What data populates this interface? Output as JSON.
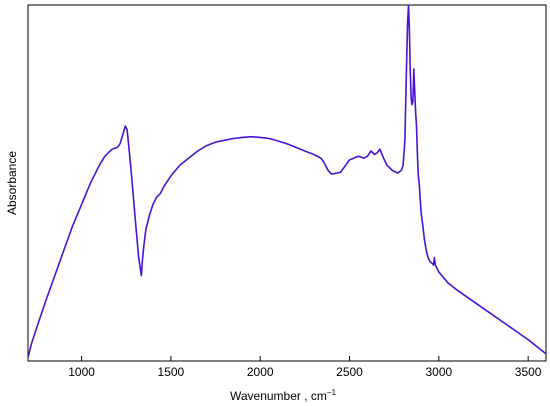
{
  "chart_data": {
    "type": "line",
    "title": "",
    "xlabel": "Wavenumber , cm",
    "xlabel_superscript": "−1",
    "ylabel": "Absorbance",
    "xlim": [
      700,
      3600
    ],
    "ylim": [
      0,
      1
    ],
    "x_ticks": [
      "1000",
      "1500",
      "2000",
      "2500",
      "3000",
      "3500"
    ],
    "y_ticks_labeled": false,
    "grid": false,
    "legend": "none",
    "series": [
      {
        "color": "#4a12d6",
        "x": [
          700,
          720,
          760,
          800,
          850,
          900,
          950,
          1000,
          1050,
          1100,
          1130,
          1150,
          1170,
          1200,
          1215,
          1230,
          1245,
          1255,
          1265,
          1280,
          1300,
          1320,
          1335,
          1340,
          1350,
          1360,
          1380,
          1400,
          1420,
          1440,
          1460,
          1500,
          1550,
          1600,
          1650,
          1700,
          1750,
          1800,
          1850,
          1900,
          1950,
          2000,
          2050,
          2100,
          2150,
          2200,
          2250,
          2300,
          2340,
          2355,
          2365,
          2380,
          2400,
          2450,
          2500,
          2550,
          2580,
          2600,
          2620,
          2640,
          2655,
          2670,
          2690,
          2710,
          2740,
          2770,
          2790,
          2800,
          2810,
          2818,
          2825,
          2830,
          2835,
          2840,
          2845,
          2850,
          2855,
          2860,
          2865,
          2870,
          2875,
          2880,
          2885,
          2890,
          2895,
          2900,
          2910,
          2920,
          2930,
          2940,
          2950,
          2960,
          2970,
          2975,
          2980,
          2990,
          3000,
          3050,
          3100,
          3200,
          3300,
          3400,
          3500,
          3550,
          3600
        ],
        "y": [
          0.01,
          0.05,
          0.11,
          0.17,
          0.24,
          0.31,
          0.38,
          0.44,
          0.5,
          0.55,
          0.575,
          0.585,
          0.595,
          0.6,
          0.61,
          0.635,
          0.66,
          0.65,
          0.6,
          0.52,
          0.4,
          0.29,
          0.24,
          0.28,
          0.33,
          0.37,
          0.41,
          0.44,
          0.46,
          0.47,
          0.49,
          0.52,
          0.55,
          0.57,
          0.59,
          0.605,
          0.615,
          0.62,
          0.625,
          0.628,
          0.63,
          0.628,
          0.625,
          0.618,
          0.61,
          0.6,
          0.59,
          0.58,
          0.57,
          0.56,
          0.55,
          0.535,
          0.525,
          0.53,
          0.565,
          0.575,
          0.57,
          0.575,
          0.59,
          0.58,
          0.585,
          0.595,
          0.57,
          0.55,
          0.535,
          0.528,
          0.535,
          0.55,
          0.62,
          0.8,
          0.95,
          1.0,
          0.93,
          0.82,
          0.74,
          0.72,
          0.73,
          0.82,
          0.76,
          0.7,
          0.66,
          0.58,
          0.52,
          0.5,
          0.46,
          0.42,
          0.38,
          0.34,
          0.31,
          0.29,
          0.28,
          0.275,
          0.27,
          0.29,
          0.27,
          0.26,
          0.25,
          0.22,
          0.2,
          0.165,
          0.13,
          0.095,
          0.06,
          0.04,
          0.02
        ]
      }
    ]
  }
}
